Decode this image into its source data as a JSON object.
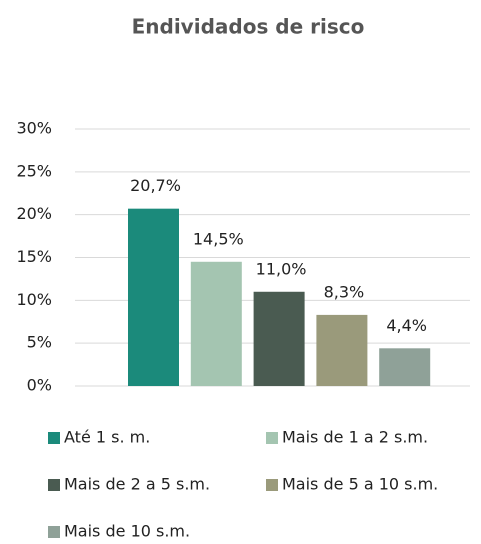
{
  "chart_data": {
    "type": "bar",
    "title": "Endividados de risco",
    "series": [
      {
        "name": "Até 1 s. m.",
        "color": "#1b8a7b",
        "values": [
          20.7
        ],
        "value_labels": [
          "20,7%"
        ]
      },
      {
        "name": "Mais de 1 a 2 s.m.",
        "color": "#a4c5b1",
        "values": [
          14.5
        ],
        "value_labels": [
          "14,5%"
        ]
      },
      {
        "name": "Mais de 2 a 5 s.m.",
        "color": "#4a5b51",
        "values": [
          11.0
        ],
        "value_labels": [
          "11,0%"
        ]
      },
      {
        "name": "Mais de 5 a 10 s.m.",
        "color": "#9a9a7b",
        "values": [
          8.3
        ],
        "value_labels": [
          "8,3%"
        ]
      },
      {
        "name": "Mais de 10 s.m.",
        "color": "#8fa198",
        "values": [
          4.4
        ],
        "value_labels": [
          "4,4%"
        ]
      }
    ],
    "ylim": [
      0,
      30
    ],
    "yticks": [
      {
        "value": 0,
        "label": "0%"
      },
      {
        "value": 5,
        "label": "5%"
      },
      {
        "value": 10,
        "label": "10%"
      },
      {
        "value": 15,
        "label": "15%"
      },
      {
        "value": 20,
        "label": "20%"
      },
      {
        "value": 25,
        "label": "25%"
      },
      {
        "value": 30,
        "label": "30%"
      }
    ],
    "grid": true
  }
}
